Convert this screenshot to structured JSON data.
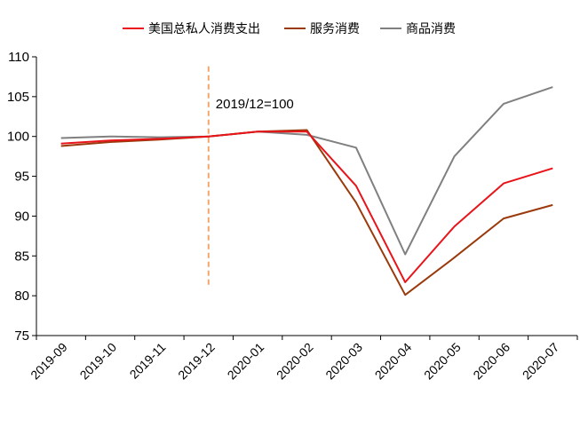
{
  "chart_data": {
    "type": "line",
    "title": "",
    "xlabel": "",
    "ylabel": "",
    "categories": [
      "2019-09",
      "2019-10",
      "2019-11",
      "2019-12",
      "2020-01",
      "2020-02",
      "2020-03",
      "2020-04",
      "2020-05",
      "2020-06",
      "2020-07"
    ],
    "ylim": [
      75,
      110
    ],
    "yticks": [
      75,
      80,
      85,
      90,
      95,
      100,
      105,
      110
    ],
    "grid": false,
    "legend_position": "top-center",
    "series": [
      {
        "name": "美国总私人消费支出",
        "color": "#e8141a",
        "values": [
          99.1,
          99.5,
          99.7,
          100.0,
          100.6,
          100.6,
          93.8,
          81.7,
          88.7,
          94.1,
          96.0
        ]
      },
      {
        "name": "服务消费",
        "color": "#9a3a0c",
        "values": [
          98.8,
          99.3,
          99.6,
          100.0,
          100.6,
          100.8,
          91.7,
          80.1,
          84.8,
          89.7,
          91.4
        ]
      },
      {
        "name": "商品消费",
        "color": "#808080",
        "values": [
          99.8,
          100.0,
          99.9,
          100.0,
          100.6,
          100.2,
          98.6,
          85.2,
          97.5,
          104.1,
          106.2
        ]
      }
    ],
    "annotations": [
      {
        "text": "2019/12=100",
        "x": "2019-12",
        "style": "dashed-vertical",
        "color": "#f4a56a",
        "y_from": 81.2,
        "y_to": 108.8
      }
    ]
  }
}
